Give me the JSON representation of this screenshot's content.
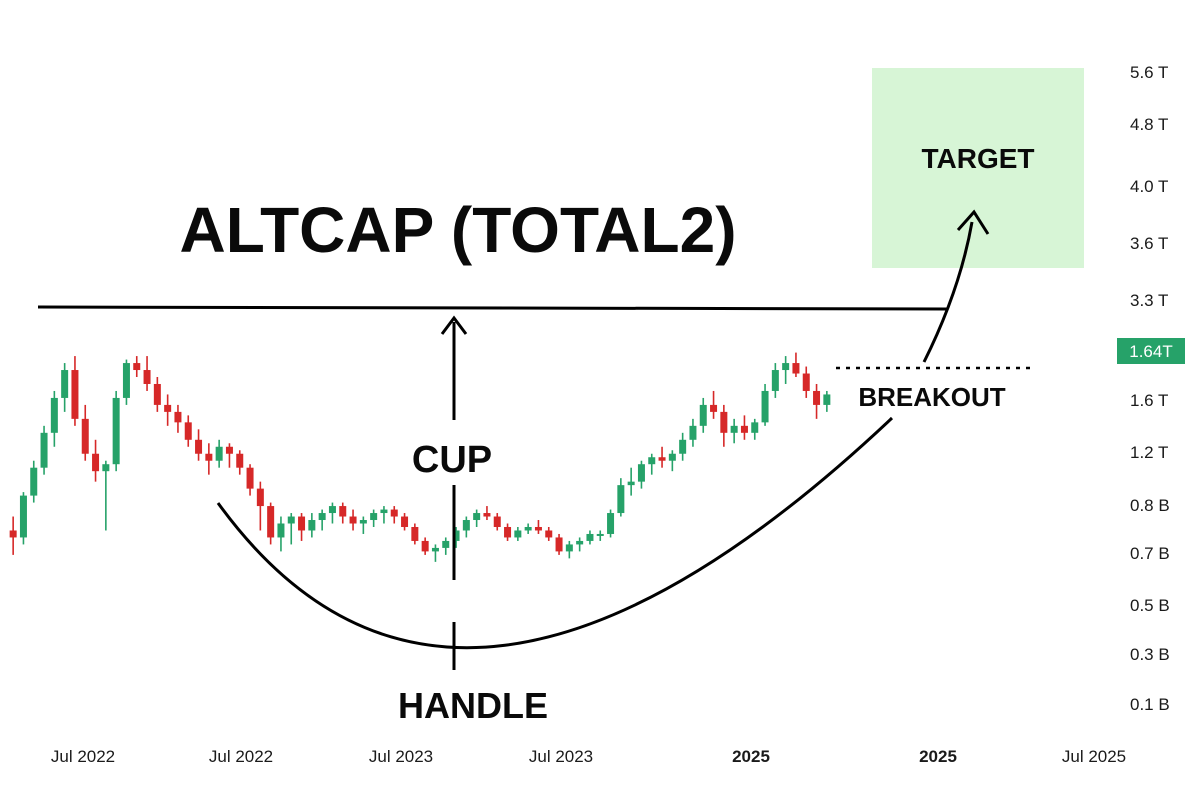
{
  "chart_data": {
    "type": "candlestick",
    "title": "ALTCAP (TOTAL2)",
    "x_ticks": [
      {
        "label": "Jul 2022",
        "bold": false
      },
      {
        "label": "Jul 2022",
        "bold": false
      },
      {
        "label": "Jul 2023",
        "bold": false
      },
      {
        "label": "Jul 2023",
        "bold": false
      },
      {
        "label": "2025",
        "bold": true
      },
      {
        "label": "2025",
        "bold": true
      },
      {
        "label": "Jul 2025",
        "bold": false
      }
    ],
    "y_ticks": [
      "5.6 T",
      "4.8 T",
      "4.0 T",
      "3.6 T",
      "3.3 T",
      "1.6 T",
      "1.2 T",
      "0.8 B",
      "0.7 B",
      "0.5 B",
      "0.3 B",
      "0.1 B"
    ],
    "current_price": {
      "label": "1.64T",
      "color": "#26a269"
    },
    "annotations": {
      "cup": "CUP",
      "handle": "HANDLE",
      "breakout": "BREAKOUT",
      "target": "TARGET"
    },
    "colors": {
      "up": "#26a269",
      "down": "#d62828",
      "target_zone": "#d7f5d6",
      "lines": "#000000"
    },
    "series_units": "relative index (0 = chart bottom, 100 = chart top)",
    "candles": [
      [
        40,
        44,
        33,
        38
      ],
      [
        38,
        51,
        36,
        50
      ],
      [
        50,
        60,
        48,
        58
      ],
      [
        58,
        70,
        56,
        68
      ],
      [
        68,
        80,
        64,
        78
      ],
      [
        78,
        88,
        74,
        86
      ],
      [
        86,
        90,
        70,
        72
      ],
      [
        72,
        76,
        60,
        62
      ],
      [
        62,
        66,
        54,
        57
      ],
      [
        57,
        60,
        40,
        59
      ],
      [
        59,
        80,
        57,
        78
      ],
      [
        78,
        89,
        76,
        88
      ],
      [
        88,
        90,
        84,
        86
      ],
      [
        86,
        90,
        80,
        82
      ],
      [
        82,
        84,
        74,
        76
      ],
      [
        76,
        79,
        70,
        74
      ],
      [
        74,
        76,
        68,
        71
      ],
      [
        71,
        73,
        64,
        66
      ],
      [
        66,
        69,
        60,
        62
      ],
      [
        62,
        65,
        56,
        60
      ],
      [
        60,
        66,
        58,
        64
      ],
      [
        64,
        65,
        58,
        62
      ],
      [
        62,
        63,
        56,
        58
      ],
      [
        58,
        59,
        50,
        52
      ],
      [
        52,
        54,
        40,
        47
      ],
      [
        47,
        48,
        36,
        38
      ],
      [
        38,
        44,
        34,
        42
      ],
      [
        42,
        45,
        36,
        44
      ],
      [
        44,
        45,
        37,
        40
      ],
      [
        40,
        45,
        38,
        43
      ],
      [
        43,
        46,
        40,
        45
      ],
      [
        45,
        48,
        42,
        47
      ],
      [
        47,
        48,
        42,
        44
      ],
      [
        44,
        46,
        40,
        42
      ],
      [
        42,
        44,
        39,
        43
      ],
      [
        43,
        46,
        41,
        45
      ],
      [
        45,
        47,
        42,
        46
      ],
      [
        46,
        47,
        42,
        44
      ],
      [
        44,
        45,
        40,
        41
      ],
      [
        41,
        42,
        36,
        37
      ],
      [
        37,
        38,
        33,
        34
      ],
      [
        34,
        36,
        31,
        35
      ],
      [
        35,
        38,
        33,
        37
      ],
      [
        37,
        41,
        35,
        40
      ],
      [
        40,
        44,
        38,
        43
      ],
      [
        43,
        46,
        41,
        45
      ],
      [
        45,
        47,
        43,
        44
      ],
      [
        44,
        45,
        40,
        41
      ],
      [
        41,
        42,
        37,
        38
      ],
      [
        38,
        41,
        37,
        40
      ],
      [
        40,
        42,
        39,
        41
      ],
      [
        41,
        43,
        39,
        40
      ],
      [
        40,
        41,
        37,
        38
      ],
      [
        38,
        39,
        33,
        34
      ],
      [
        34,
        37,
        32,
        36
      ],
      [
        36,
        38,
        34,
        37
      ],
      [
        37,
        40,
        36,
        39
      ],
      [
        39,
        40,
        37,
        39
      ],
      [
        39,
        46,
        38,
        45
      ],
      [
        45,
        55,
        44,
        53
      ],
      [
        53,
        58,
        50,
        54
      ],
      [
        54,
        60,
        52,
        59
      ],
      [
        59,
        62,
        56,
        61
      ],
      [
        61,
        64,
        58,
        60
      ],
      [
        60,
        63,
        57,
        62
      ],
      [
        62,
        68,
        60,
        66
      ],
      [
        66,
        72,
        64,
        70
      ],
      [
        70,
        78,
        68,
        76
      ],
      [
        76,
        80,
        72,
        74
      ],
      [
        74,
        76,
        64,
        68
      ],
      [
        68,
        72,
        65,
        70
      ],
      [
        70,
        73,
        66,
        68
      ],
      [
        68,
        72,
        66,
        71
      ],
      [
        71,
        82,
        70,
        80
      ],
      [
        80,
        88,
        78,
        86
      ],
      [
        86,
        90,
        82,
        88
      ],
      [
        88,
        91,
        84,
        85
      ],
      [
        85,
        87,
        78,
        80
      ],
      [
        80,
        82,
        72,
        76
      ],
      [
        76,
        80,
        74,
        79
      ]
    ]
  }
}
